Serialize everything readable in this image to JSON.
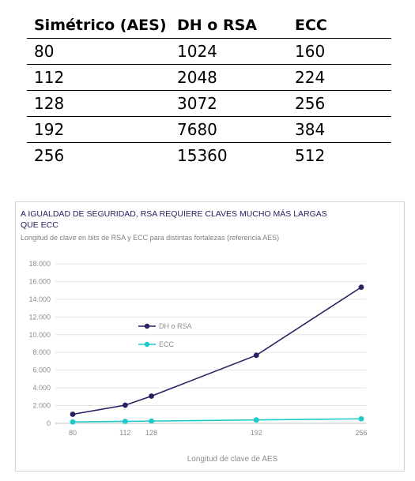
{
  "table": {
    "headers": [
      "Simétrico (AES)",
      "DH o RSA",
      "ECC"
    ],
    "rows": [
      [
        "80",
        "1024",
        "160"
      ],
      [
        "112",
        "2048",
        "224"
      ],
      [
        "128",
        "3072",
        "256"
      ],
      [
        "192",
        "7680",
        "384"
      ],
      [
        "256",
        "15360",
        "512"
      ]
    ]
  },
  "chart_data": {
    "type": "line",
    "title": "A IGUALDAD DE SEGURIDAD, RSA REQUIERE CLAVES MUCHO MÁS LARGAS QUE ECC",
    "subtitle": "Longitud de clave en bits de RSA y ECC para distintas fortalezas (referencia AES)",
    "xlabel": "Longitud de clave de AES",
    "ylabel": "",
    "x": [
      80,
      112,
      128,
      192,
      256
    ],
    "x_tick_labels": [
      "80",
      "112",
      "128",
      "192",
      "256"
    ],
    "ylim": [
      0,
      18000
    ],
    "y_ticks": [
      0,
      2000,
      4000,
      6000,
      8000,
      10000,
      12000,
      14000,
      16000,
      18000
    ],
    "y_tick_labels": [
      "0",
      "2.000",
      "4.000",
      "6.000",
      "8.000",
      "10.000",
      "12.000",
      "14.000",
      "16.000",
      "18.000"
    ],
    "grid": "horizontal",
    "legend_position": "center-left",
    "series": [
      {
        "name": "DH o RSA",
        "color": "#262262",
        "values": [
          1024,
          2048,
          3072,
          7680,
          15360
        ]
      },
      {
        "name": "ECC",
        "color": "#1ec9c9",
        "values": [
          160,
          224,
          256,
          384,
          512
        ]
      }
    ]
  }
}
